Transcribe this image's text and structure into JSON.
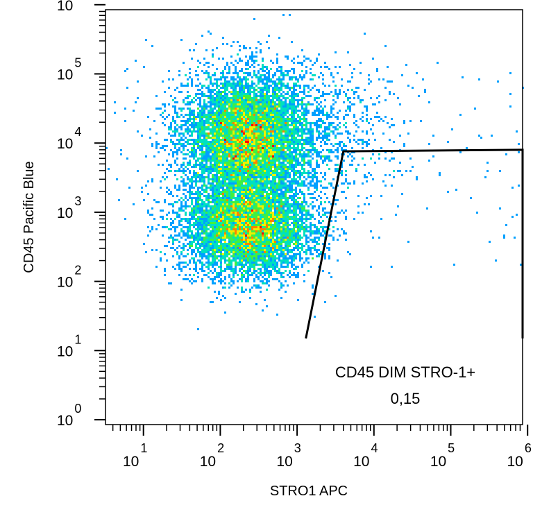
{
  "chart_data": {
    "type": "scatter",
    "xlabel": "STRO1  APC",
    "ylabel": "CD45 Pacific Blue",
    "x_scale": "log",
    "y_scale": "log",
    "xlim": [
      1,
      1000000
    ],
    "ylim": [
      1,
      1000000
    ],
    "x_ticks": [
      {
        "base": "10",
        "exp": "1",
        "value": 10
      },
      {
        "base": "10",
        "exp": "2",
        "value": 100
      },
      {
        "base": "10",
        "exp": "3",
        "value": 1000
      },
      {
        "base": "10",
        "exp": "4",
        "value": 10000
      },
      {
        "base": "10",
        "exp": "5",
        "value": 100000
      },
      {
        "base": "10",
        "exp": "6",
        "value": 1000000
      }
    ],
    "y_ticks": [
      {
        "base": "10",
        "exp": "0",
        "value": 1
      },
      {
        "base": "10",
        "exp": "1",
        "value": 10
      },
      {
        "base": "10",
        "exp": "2",
        "value": 100
      },
      {
        "base": "10",
        "exp": "3",
        "value": 1000
      },
      {
        "base": "10",
        "exp": "4",
        "value": 10000
      },
      {
        "base": "10",
        "exp": "5",
        "value": 100000
      },
      {
        "base": "10",
        "exp": "6",
        "value": 1000000
      }
    ],
    "colormap": [
      "#0000ff",
      "#00a0ff",
      "#00e0c0",
      "#40f040",
      "#f0f000",
      "#ff8000",
      "#ff0000"
    ],
    "populations": [
      {
        "x_center": 220,
        "y_center": 12000,
        "x_spread_decades": 0.4,
        "y_spread_decades": 0.45,
        "weight": 0.5
      },
      {
        "x_center": 230,
        "y_center": 600,
        "x_spread_decades": 0.42,
        "y_spread_decades": 0.35,
        "weight": 0.42
      },
      {
        "x_center": 800,
        "y_center": 15000,
        "x_spread_decades": 0.7,
        "y_spread_decades": 0.5,
        "weight": 0.08
      }
    ],
    "gate": {
      "name": "CD45 DIM STRO-1+",
      "value": "0,15",
      "vertices": [
        {
          "x": 1300,
          "y": 15
        },
        {
          "x": 4000,
          "y": 7600
        },
        {
          "x": 1000000,
          "y": 8000
        },
        {
          "x": 1000000,
          "y": 15
        }
      ]
    },
    "grid": false,
    "legend": "none"
  }
}
